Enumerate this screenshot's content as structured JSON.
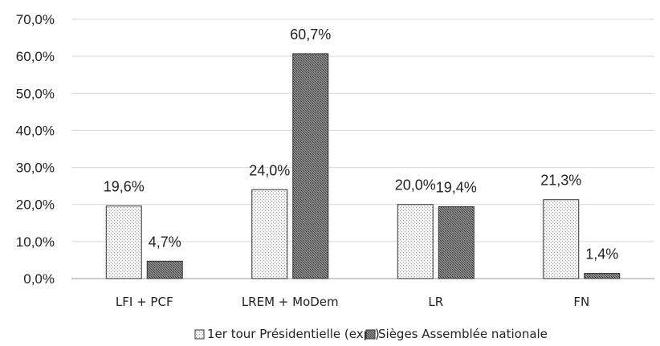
{
  "chart_data": {
    "type": "bar",
    "categories": [
      "LFI + PCF",
      "LREM + MoDem",
      "LR",
      "FN"
    ],
    "series": [
      {
        "name": "1er tour Présidentielle (exp.)",
        "values": [
          19.6,
          24.0,
          20.0,
          21.3
        ],
        "labels": [
          "19,6%",
          "24,0%",
          "20,0%",
          "21,3%"
        ],
        "pattern": "light-dotted",
        "color": "#e6e6e6"
      },
      {
        "name": "Sièges Assemblée nationale",
        "values": [
          4.7,
          60.7,
          19.4,
          1.4
        ],
        "labels": [
          "4,7%",
          "60,7%",
          "19,4%",
          "1,4%"
        ],
        "pattern": "dark-dotted",
        "color": "#777777"
      }
    ],
    "yticks": [
      "0,0%",
      "10,0%",
      "20,0%",
      "30,0%",
      "40,0%",
      "50,0%",
      "60,0%",
      "70,0%"
    ],
    "ylim": [
      0,
      70
    ],
    "grid": true,
    "legend_position": "bottom",
    "title": "",
    "xlabel": "",
    "ylabel": ""
  }
}
